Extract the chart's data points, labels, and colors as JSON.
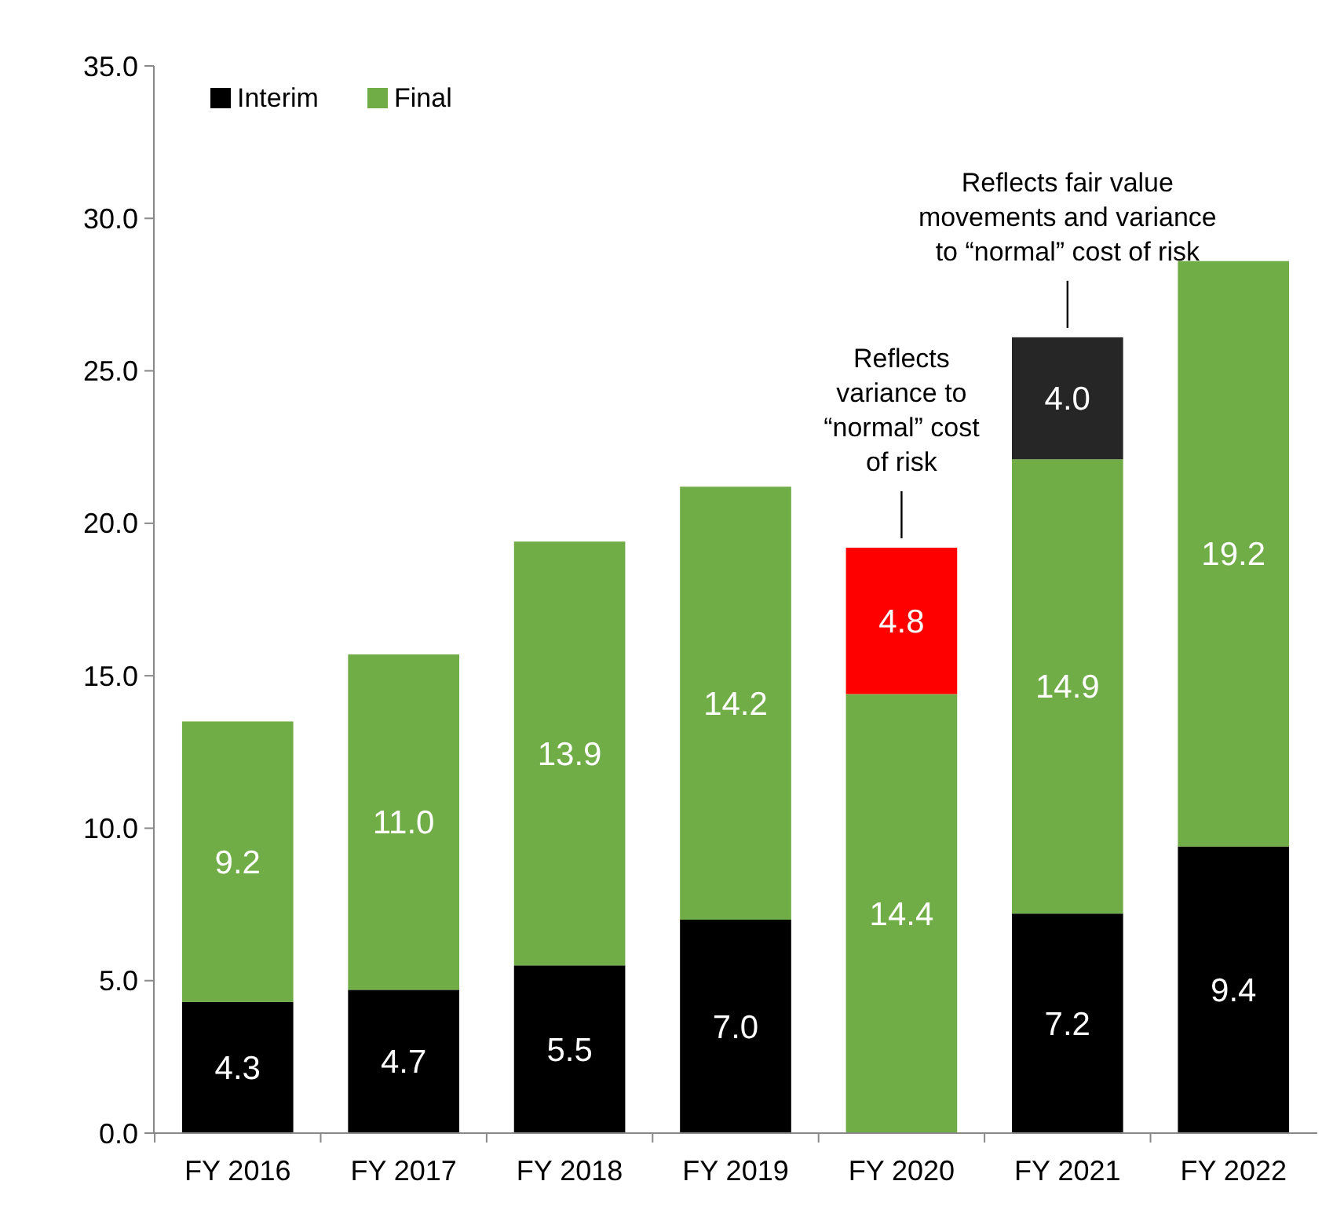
{
  "chart_data": {
    "type": "bar",
    "stacked": true,
    "categories": [
      "FY 2016",
      "FY 2017",
      "FY 2018",
      "FY 2019",
      "FY 2020",
      "FY 2021",
      "FY 2022"
    ],
    "series": [
      {
        "name": "Interim",
        "color": "#000000",
        "values": [
          4.3,
          4.7,
          5.5,
          7.0,
          null,
          7.2,
          9.4
        ],
        "value_labels": [
          "4.3",
          "4.7",
          "5.5",
          "7.0",
          null,
          "7.2",
          "9.4"
        ]
      },
      {
        "name": "Final",
        "color": "#70ad47",
        "values": [
          9.2,
          11.0,
          13.9,
          14.2,
          14.4,
          14.9,
          19.2
        ],
        "value_labels": [
          "9.2",
          "11.0",
          "13.9",
          "14.2",
          "14.4",
          "14.9",
          "19.2"
        ]
      },
      {
        "colors": [
          null,
          null,
          null,
          null,
          "#ff0000",
          "#262626",
          null
        ],
        "values": [
          null,
          null,
          null,
          null,
          4.8,
          4.0,
          null
        ],
        "value_labels": [
          null,
          null,
          null,
          null,
          "4.8",
          "4.0",
          null
        ]
      }
    ],
    "ylim": [
      0,
      35
    ],
    "yticks": [
      {
        "value": 0,
        "label": "0.0"
      },
      {
        "value": 5,
        "label": "5.0"
      },
      {
        "value": 10,
        "label": "10.0"
      },
      {
        "value": 15,
        "label": "15.0"
      },
      {
        "value": 20,
        "label": "20.0"
      },
      {
        "value": 25,
        "label": "25.0"
      },
      {
        "value": 30,
        "label": "30.0"
      },
      {
        "value": 35,
        "label": "35.0"
      }
    ],
    "grid": false,
    "legend": "top left",
    "annotations": [
      {
        "text": "Reflects variance to “normal” cost of risk",
        "x": "FY 2020",
        "y": 19.2
      },
      {
        "text": "Reflects fair value movements and variance to “normal” cost of risk",
        "x": "FY 2021",
        "y": 26.1
      }
    ]
  }
}
